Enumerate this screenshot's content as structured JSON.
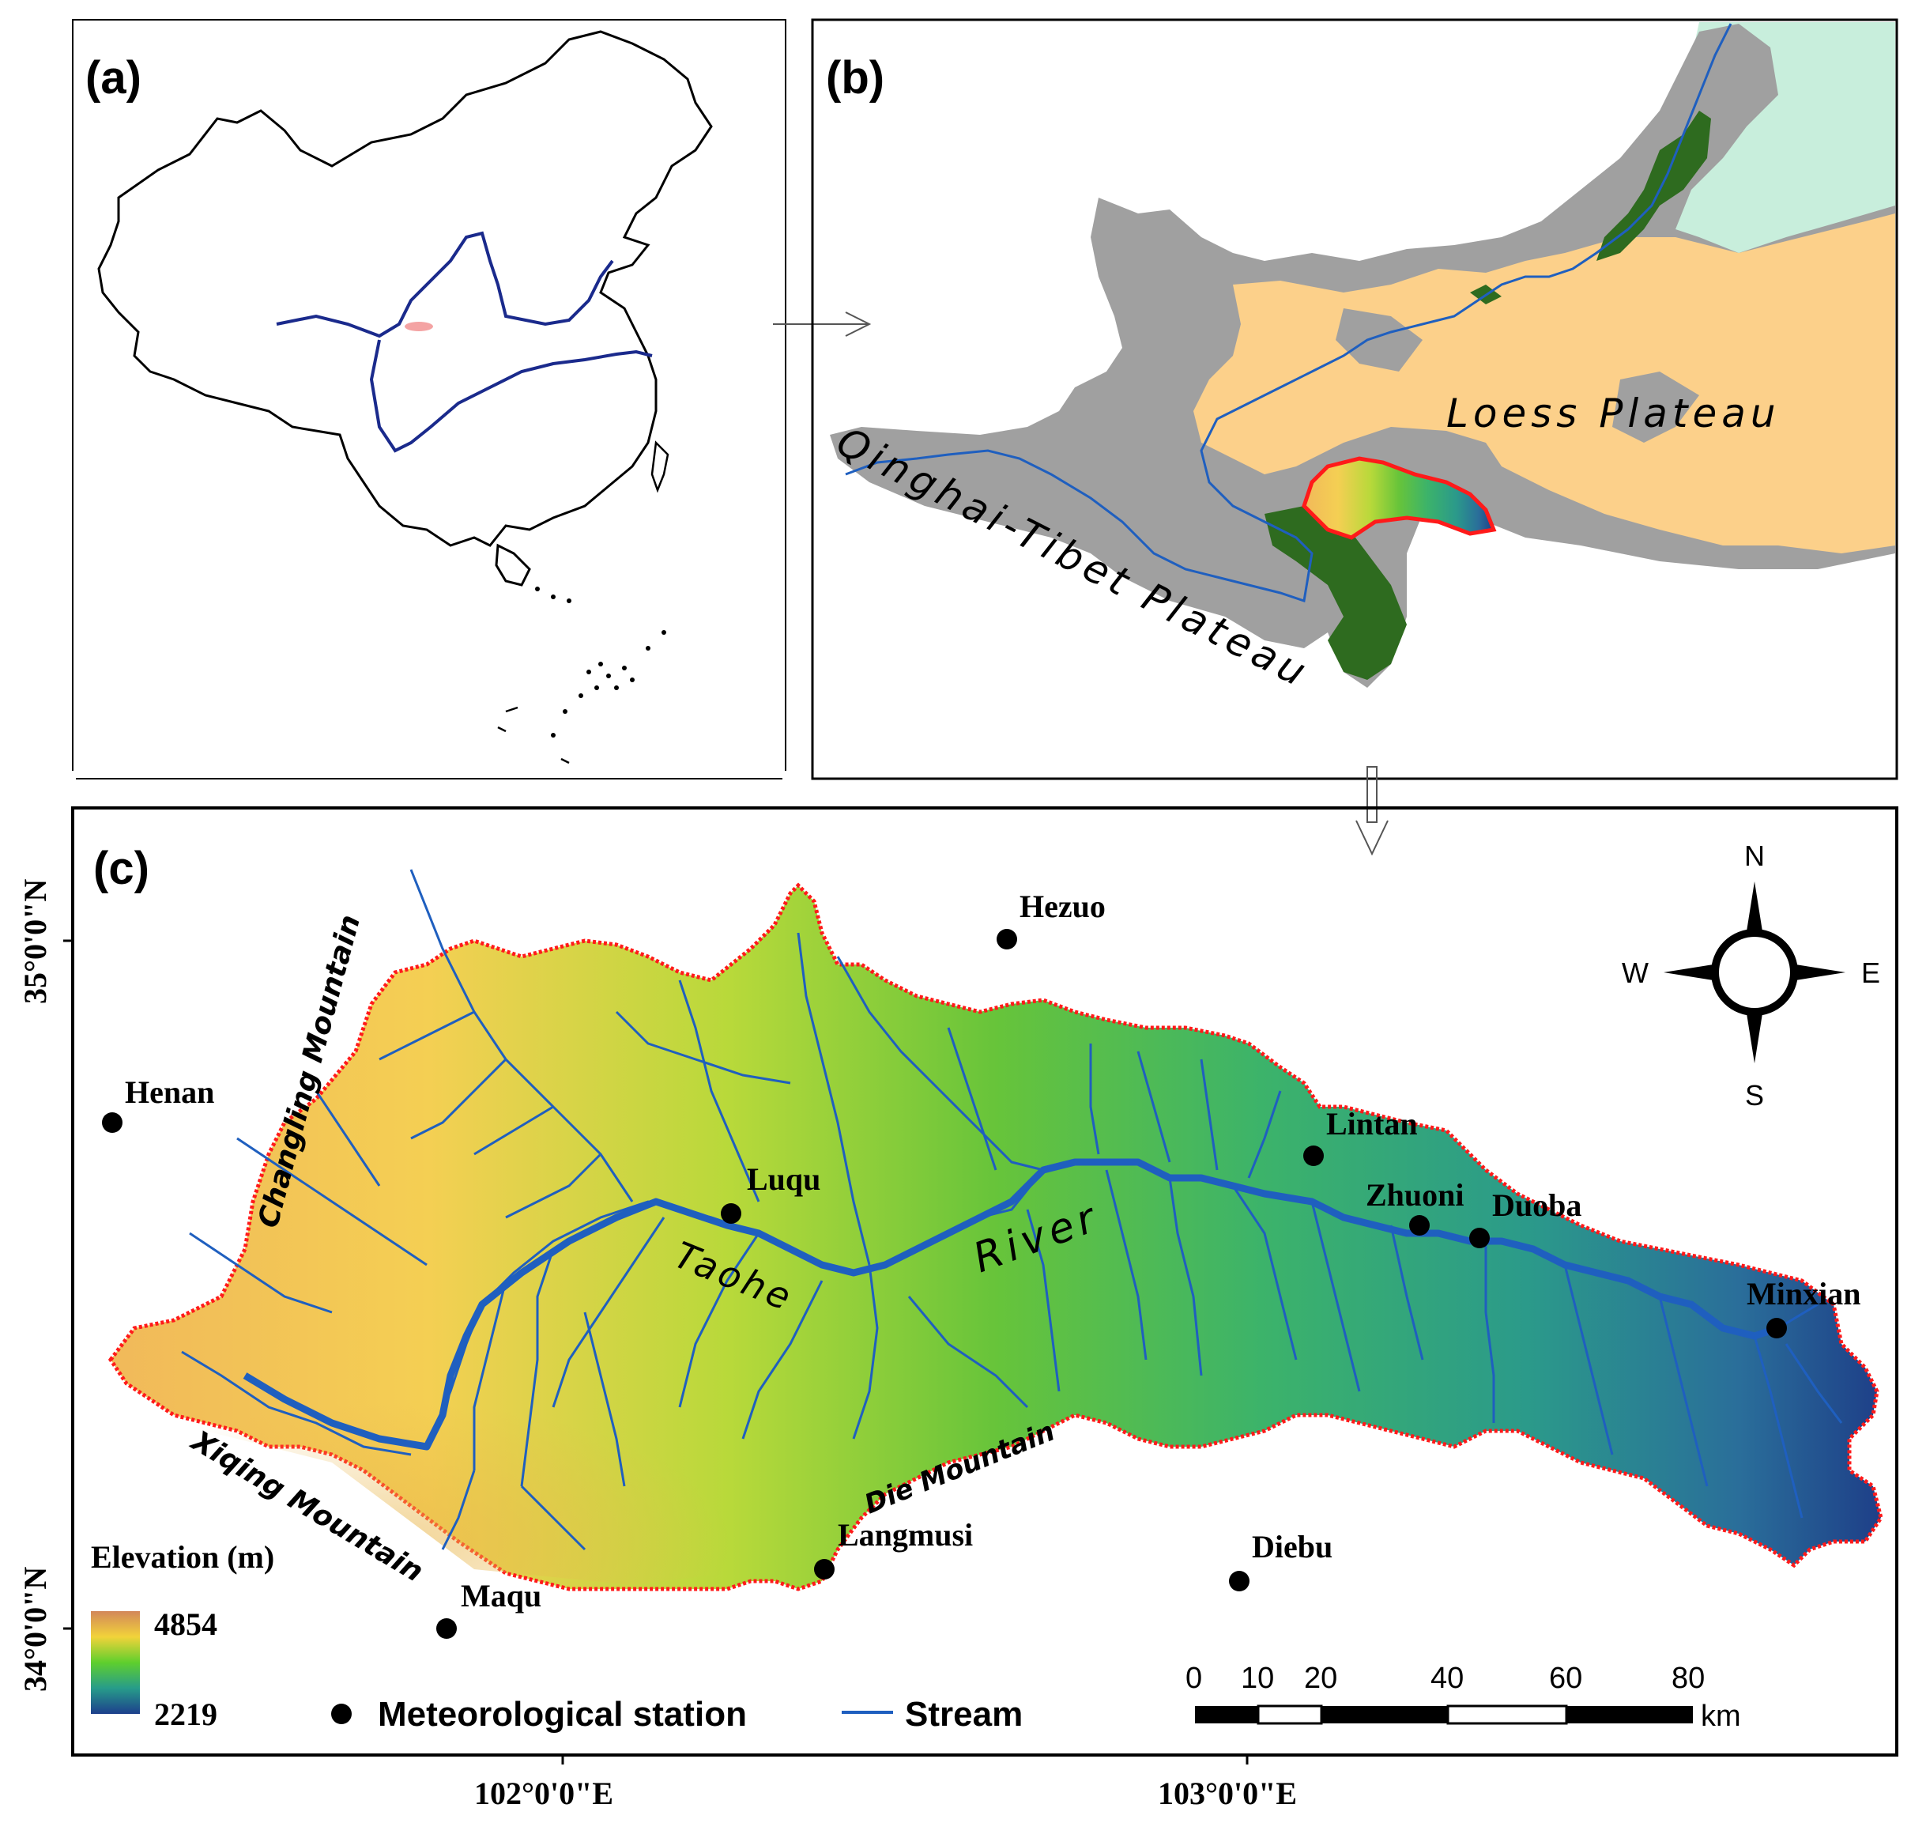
{
  "panels": {
    "a": "(a)",
    "b": "(b)",
    "c": "(c)"
  },
  "regions": {
    "loess": "Loess Plateau",
    "qinghai": "Qinghai-Tibet Plateau"
  },
  "stations": [
    {
      "name": "Hezuo"
    },
    {
      "name": "Henan"
    },
    {
      "name": "Luqu"
    },
    {
      "name": "Lintan"
    },
    {
      "name": "Zhuoni"
    },
    {
      "name": "Duoba"
    },
    {
      "name": "Minxian"
    },
    {
      "name": "Langmusi"
    },
    {
      "name": "Diebu"
    },
    {
      "name": "Maqu"
    }
  ],
  "features": {
    "changling": "Changling Mountain",
    "xiqing": "Xiqing Mountain",
    "die": "Die Mountain",
    "taohe": "Taohe",
    "river": "River"
  },
  "axes": {
    "lat_top": "35°0'0\"N",
    "lat_bottom": "34°0'0\"N",
    "lon_left": "102°0'0\"E",
    "lon_right": "103°0'0\"E"
  },
  "elevation_legend": {
    "title": "Elevation (m)",
    "max": "4854",
    "min": "2219"
  },
  "legend": {
    "station": "Meteorological station",
    "stream": "Stream"
  },
  "scale_bar": {
    "ticks": [
      "0",
      "10",
      "20",
      "40",
      "60",
      "80"
    ],
    "unit": "km"
  },
  "compass": {
    "n": "N",
    "s": "S",
    "e": "E",
    "w": "W"
  },
  "colors": {
    "stream": "#1f5fbf",
    "boundary": "#ff1a1a",
    "loess": "#fcd08a",
    "plateau_gray": "#a0a0a0",
    "green": "#2e6b1f",
    "light_green": "#c8eedc"
  }
}
